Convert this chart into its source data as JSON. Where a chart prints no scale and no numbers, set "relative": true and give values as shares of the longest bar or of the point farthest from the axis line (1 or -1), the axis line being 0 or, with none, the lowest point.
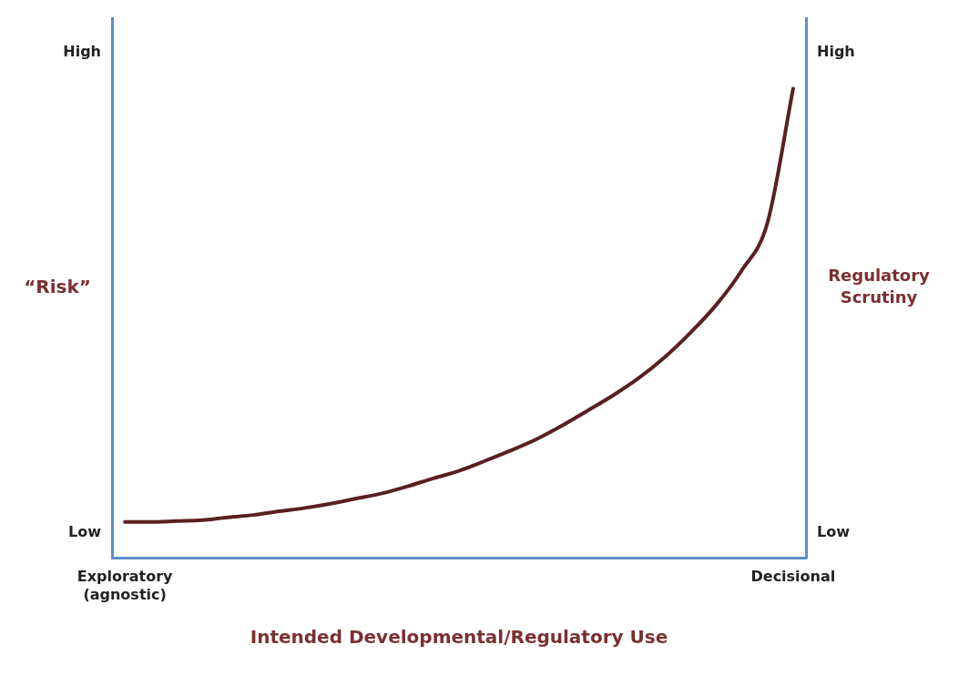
{
  "chart_data": {
    "type": "line",
    "relative": true,
    "xlabel": "Intended Developmental/Regulatory Use",
    "ylabel": "“Risk”",
    "y2label": "Regulatory Scrutiny",
    "categories": [
      "Exploratory (agnostic)",
      null,
      null,
      null,
      null,
      null,
      null,
      null,
      null,
      null,
      null,
      null,
      null,
      null,
      null,
      null,
      null,
      null,
      null,
      null,
      null,
      null,
      null,
      null,
      null,
      null,
      "Decisional"
    ],
    "series": [
      {
        "color": "#5a1f22",
        "values": [
          0.077,
          0.077,
          0.079,
          0.081,
          0.087,
          0.092,
          0.1,
          0.107,
          0.116,
          0.127,
          0.138,
          0.153,
          0.17,
          0.186,
          0.207,
          0.229,
          0.253,
          0.282,
          0.314,
          0.347,
          0.384,
          0.428,
          0.48,
          0.539,
          0.613,
          0.714,
          1.0
        ]
      }
    ],
    "annotations": [
      "High",
      "Low",
      "High",
      "Low"
    ],
    "grid": false,
    "legend": false,
    "marker": "none",
    "line_style": "solid"
  }
}
